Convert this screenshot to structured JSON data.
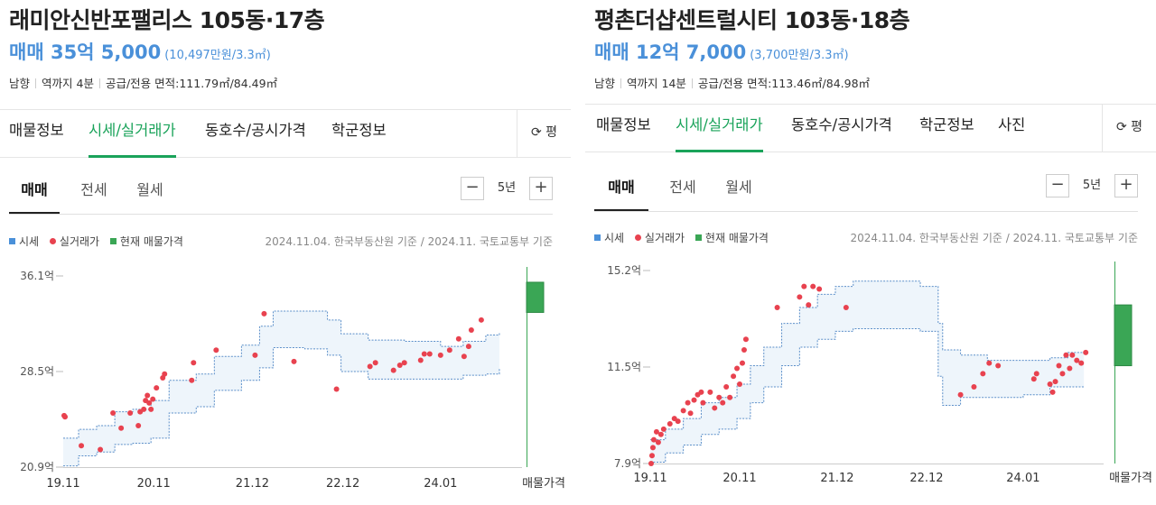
{
  "colors": {
    "accent_green": "#1aa35a",
    "price_blue": "#4a90d9",
    "band_fill": "#eef5fb",
    "band_line": "#5b8fc9",
    "trade_dot": "#e8424f",
    "listing_green": "#3aa655"
  },
  "panels": [
    {
      "title": "래미안신반포팰리스 105동·17층",
      "price_main": "매매 35억 5,000",
      "price_sub": "(10,497만원/3.3㎡)",
      "info": [
        "남향",
        "역까지 4분",
        "공급/전용 면적:111.79㎡/84.49㎡"
      ],
      "tabs": [
        "매물정보",
        "시세/실거래가",
        "동호수/공시가격",
        "학군정보"
      ],
      "active_tab": 1,
      "pyeong_label": "평",
      "pyeong_icon": "refresh-icon",
      "subtabs": [
        "매매",
        "전세",
        "월세"
      ],
      "period": {
        "minus": "−",
        "label": "5년",
        "plus": "+"
      },
      "legend": {
        "price": "시세",
        "trade": "실거래가",
        "listing": "현재 매물가격"
      },
      "source": "2024.11.04. 한국부동산원 기준 / 2024.11. 국토교통부 기준"
    },
    {
      "title": "평촌더샵센트럴시티 103동·18층",
      "price_main": "매매 12억 7,000",
      "price_sub": "(3,700만원/3.3㎡)",
      "info": [
        "남향",
        "역까지 14분",
        "공급/전용 면적:113.46㎡/84.98㎡"
      ],
      "tabs": [
        "매물정보",
        "시세/실거래가",
        "동호수/공시가격",
        "학군정보",
        "사진"
      ],
      "active_tab": 1,
      "pyeong_label": "평",
      "pyeong_icon": "refresh-icon",
      "subtabs": [
        "매매",
        "전세",
        "월세"
      ],
      "period": {
        "minus": "−",
        "label": "5년",
        "plus": "+"
      },
      "legend": {
        "price": "시세",
        "trade": "실거래가",
        "listing": "현재 매물가격"
      },
      "source": "2024.11.04. 한국부동산원 기준 / 2024.11. 국토교통부 기준"
    }
  ],
  "chart_data": [
    {
      "type": "area",
      "unit": "억",
      "ylim": [
        20.9,
        36.1
      ],
      "yticks": [
        "36.1억",
        "28.5억",
        "20.9억"
      ],
      "xlim": [
        2019.83,
        2024.9
      ],
      "xticks": [
        {
          "label": "19.11",
          "x": 2019.83
        },
        {
          "label": "20.11",
          "x": 2020.83
        },
        {
          "label": "21.12",
          "x": 2021.92
        },
        {
          "label": "22.12",
          "x": 2022.92
        },
        {
          "label": "24.01",
          "x": 2024.0
        }
      ],
      "listing_label": "매물가격",
      "band_upper": [
        [
          2019.83,
          23.2
        ],
        [
          2020.0,
          23.9
        ],
        [
          2020.2,
          24.2
        ],
        [
          2020.4,
          25.3
        ],
        [
          2020.6,
          25.5
        ],
        [
          2020.8,
          26.2
        ],
        [
          2021.0,
          27.8
        ],
        [
          2021.3,
          28.3
        ],
        [
          2021.5,
          29.7
        ],
        [
          2021.8,
          30.6
        ],
        [
          2022.0,
          32.1
        ],
        [
          2022.15,
          33.3
        ],
        [
          2022.5,
          33.3
        ],
        [
          2022.75,
          32.6
        ],
        [
          2022.9,
          31.5
        ],
        [
          2023.2,
          31.0
        ],
        [
          2023.6,
          30.9
        ],
        [
          2024.0,
          30.5
        ],
        [
          2024.25,
          30.9
        ],
        [
          2024.5,
          31.4
        ],
        [
          2024.65,
          31.6
        ]
      ],
      "band_lower": [
        [
          2019.83,
          21.0
        ],
        [
          2020.0,
          21.8
        ],
        [
          2020.2,
          22.1
        ],
        [
          2020.4,
          22.7
        ],
        [
          2020.6,
          22.8
        ],
        [
          2020.8,
          23.2
        ],
        [
          2021.0,
          25.2
        ],
        [
          2021.3,
          25.7
        ],
        [
          2021.5,
          27.0
        ],
        [
          2021.8,
          27.8
        ],
        [
          2022.0,
          28.8
        ],
        [
          2022.15,
          30.4
        ],
        [
          2022.5,
          30.3
        ],
        [
          2022.75,
          29.8
        ],
        [
          2022.9,
          28.5
        ],
        [
          2023.2,
          27.9
        ],
        [
          2023.6,
          27.9
        ],
        [
          2024.0,
          27.9
        ],
        [
          2024.25,
          28.2
        ],
        [
          2024.5,
          28.3
        ],
        [
          2024.65,
          28.8
        ]
      ],
      "trades": [
        [
          2019.84,
          25.0
        ],
        [
          2019.85,
          24.9
        ],
        [
          2020.03,
          22.6
        ],
        [
          2020.24,
          22.3
        ],
        [
          2020.38,
          25.2
        ],
        [
          2020.47,
          24.0
        ],
        [
          2020.57,
          25.2
        ],
        [
          2020.66,
          24.2
        ],
        [
          2020.68,
          25.3
        ],
        [
          2020.72,
          25.5
        ],
        [
          2020.74,
          26.2
        ],
        [
          2020.76,
          26.6
        ],
        [
          2020.78,
          26.0
        ],
        [
          2020.8,
          25.5
        ],
        [
          2020.82,
          26.3
        ],
        [
          2020.86,
          27.2
        ],
        [
          2020.93,
          28.0
        ],
        [
          2020.95,
          28.3
        ],
        [
          2021.25,
          27.8
        ],
        [
          2021.27,
          29.2
        ],
        [
          2021.52,
          30.2
        ],
        [
          2021.95,
          29.8
        ],
        [
          2022.05,
          33.1
        ],
        [
          2022.38,
          29.3
        ],
        [
          2022.85,
          27.1
        ],
        [
          2023.22,
          28.9
        ],
        [
          2023.28,
          29.2
        ],
        [
          2023.48,
          28.6
        ],
        [
          2023.55,
          29.0
        ],
        [
          2023.6,
          29.2
        ],
        [
          2023.78,
          29.4
        ],
        [
          2023.82,
          29.9
        ],
        [
          2023.88,
          29.9
        ],
        [
          2024.0,
          29.8
        ],
        [
          2024.1,
          30.2
        ],
        [
          2024.2,
          31.1
        ],
        [
          2024.26,
          29.7
        ],
        [
          2024.31,
          30.5
        ],
        [
          2024.34,
          31.8
        ],
        [
          2024.45,
          32.6
        ]
      ],
      "listing_range": [
        33.2,
        35.6
      ]
    },
    {
      "type": "area",
      "unit": "억",
      "ylim": [
        7.9,
        15.2
      ],
      "yticks": [
        "15.2억",
        "11.5억",
        "7.9억"
      ],
      "xlim": [
        2019.83,
        2024.9
      ],
      "xticks": [
        {
          "label": "19.11",
          "x": 2019.83
        },
        {
          "label": "20.11",
          "x": 2020.83
        },
        {
          "label": "21.12",
          "x": 2021.92
        },
        {
          "label": "22.12",
          "x": 2022.92
        },
        {
          "label": "24.01",
          "x": 2024.0
        }
      ],
      "listing_label": "매물가격",
      "band_upper": [
        [
          2019.83,
          8.8
        ],
        [
          2020.0,
          9.2
        ],
        [
          2020.2,
          9.6
        ],
        [
          2020.4,
          10.2
        ],
        [
          2020.6,
          10.4
        ],
        [
          2020.8,
          10.9
        ],
        [
          2020.95,
          11.6
        ],
        [
          2021.1,
          12.3
        ],
        [
          2021.3,
          13.2
        ],
        [
          2021.5,
          13.8
        ],
        [
          2021.7,
          14.3
        ],
        [
          2021.9,
          14.6
        ],
        [
          2022.1,
          14.8
        ],
        [
          2022.6,
          14.8
        ],
        [
          2022.85,
          14.6
        ],
        [
          2023.05,
          13.2
        ],
        [
          2023.1,
          12.2
        ],
        [
          2023.3,
          12.0
        ],
        [
          2023.6,
          11.8
        ],
        [
          2024.0,
          11.8
        ],
        [
          2024.3,
          11.9
        ],
        [
          2024.5,
          12.1
        ],
        [
          2024.68,
          12.1
        ]
      ],
      "band_lower": [
        [
          2019.83,
          7.95
        ],
        [
          2020.0,
          8.3
        ],
        [
          2020.2,
          8.6
        ],
        [
          2020.4,
          9.0
        ],
        [
          2020.6,
          9.2
        ],
        [
          2020.8,
          9.6
        ],
        [
          2020.95,
          10.2
        ],
        [
          2021.1,
          10.8
        ],
        [
          2021.3,
          11.6
        ],
        [
          2021.5,
          12.3
        ],
        [
          2021.7,
          12.6
        ],
        [
          2021.9,
          12.9
        ],
        [
          2022.1,
          13.0
        ],
        [
          2022.6,
          13.0
        ],
        [
          2022.85,
          12.9
        ],
        [
          2023.05,
          11.2
        ],
        [
          2023.1,
          10.1
        ],
        [
          2023.3,
          10.4
        ],
        [
          2023.6,
          10.4
        ],
        [
          2024.0,
          10.5
        ],
        [
          2024.3,
          10.8
        ],
        [
          2024.5,
          10.8
        ],
        [
          2024.68,
          10.8
        ]
      ],
      "trades": [
        [
          2019.84,
          7.9
        ],
        [
          2019.85,
          8.2
        ],
        [
          2019.86,
          8.5
        ],
        [
          2019.87,
          8.8
        ],
        [
          2019.9,
          9.1
        ],
        [
          2019.92,
          8.7
        ],
        [
          2019.95,
          9.0
        ],
        [
          2019.98,
          9.2
        ],
        [
          2020.05,
          9.4
        ],
        [
          2020.1,
          9.6
        ],
        [
          2020.14,
          9.5
        ],
        [
          2020.2,
          9.9
        ],
        [
          2020.25,
          10.2
        ],
        [
          2020.28,
          9.8
        ],
        [
          2020.32,
          10.3
        ],
        [
          2020.36,
          10.5
        ],
        [
          2020.4,
          10.6
        ],
        [
          2020.42,
          10.2
        ],
        [
          2020.5,
          10.6
        ],
        [
          2020.55,
          10.0
        ],
        [
          2020.6,
          10.4
        ],
        [
          2020.64,
          10.2
        ],
        [
          2020.68,
          10.8
        ],
        [
          2020.72,
          10.4
        ],
        [
          2020.76,
          11.2
        ],
        [
          2020.8,
          11.5
        ],
        [
          2020.83,
          10.9
        ],
        [
          2020.86,
          11.7
        ],
        [
          2020.88,
          12.2
        ],
        [
          2020.9,
          12.6
        ],
        [
          2021.25,
          13.8
        ],
        [
          2021.5,
          14.2
        ],
        [
          2021.55,
          14.6
        ],
        [
          2021.6,
          13.9
        ],
        [
          2021.65,
          14.6
        ],
        [
          2021.72,
          14.5
        ],
        [
          2022.02,
          13.8
        ],
        [
          2023.3,
          10.5
        ],
        [
          2023.45,
          10.8
        ],
        [
          2023.55,
          11.3
        ],
        [
          2023.62,
          11.7
        ],
        [
          2023.72,
          11.6
        ],
        [
          2024.12,
          11.1
        ],
        [
          2024.15,
          11.3
        ],
        [
          2024.3,
          10.9
        ],
        [
          2024.33,
          10.6
        ],
        [
          2024.36,
          11.0
        ],
        [
          2024.4,
          11.6
        ],
        [
          2024.44,
          11.3
        ],
        [
          2024.48,
          12.0
        ],
        [
          2024.52,
          11.5
        ],
        [
          2024.55,
          12.0
        ],
        [
          2024.6,
          11.8
        ],
        [
          2024.65,
          11.7
        ],
        [
          2024.7,
          12.1
        ]
      ],
      "listing_range": [
        11.6,
        13.9
      ]
    }
  ]
}
